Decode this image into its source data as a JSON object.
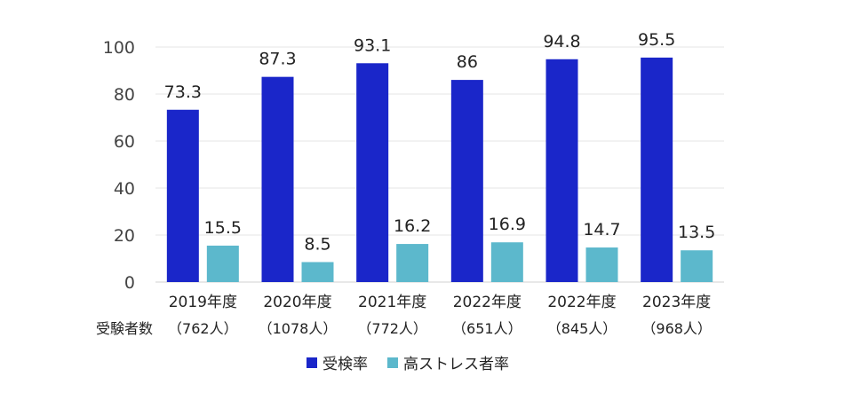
{
  "chart_data": {
    "type": "bar",
    "categories": [
      "2019年度",
      "2020年度",
      "2021年度",
      "2022年度",
      "2022年度",
      "2023年度"
    ],
    "participants": [
      "（762人）",
      "（1078人）",
      "（772人）",
      "（651人）",
      "（845人）",
      "（968人）"
    ],
    "participants_label": "受験者数",
    "series": [
      {
        "name": "受検率",
        "values": [
          73.3,
          87.3,
          93.1,
          86,
          94.8,
          95.5
        ],
        "color": "#1a26c9"
      },
      {
        "name": "高ストレス者率",
        "values": [
          15.5,
          8.5,
          16.2,
          16.9,
          14.7,
          13.5
        ],
        "color": "#5cb8cc"
      }
    ],
    "value_labels": [
      [
        "73.3",
        "87.3",
        "93.1",
        "86",
        "94.8",
        "95.5"
      ],
      [
        "15.5",
        "8.5",
        "16.2",
        "16.9",
        "14.7",
        "13.5"
      ]
    ],
    "ylim": [
      0,
      100
    ],
    "yticks": [
      "0",
      "20",
      "40",
      "60",
      "80",
      "100"
    ],
    "grid": true,
    "legend_position": "bottom"
  }
}
